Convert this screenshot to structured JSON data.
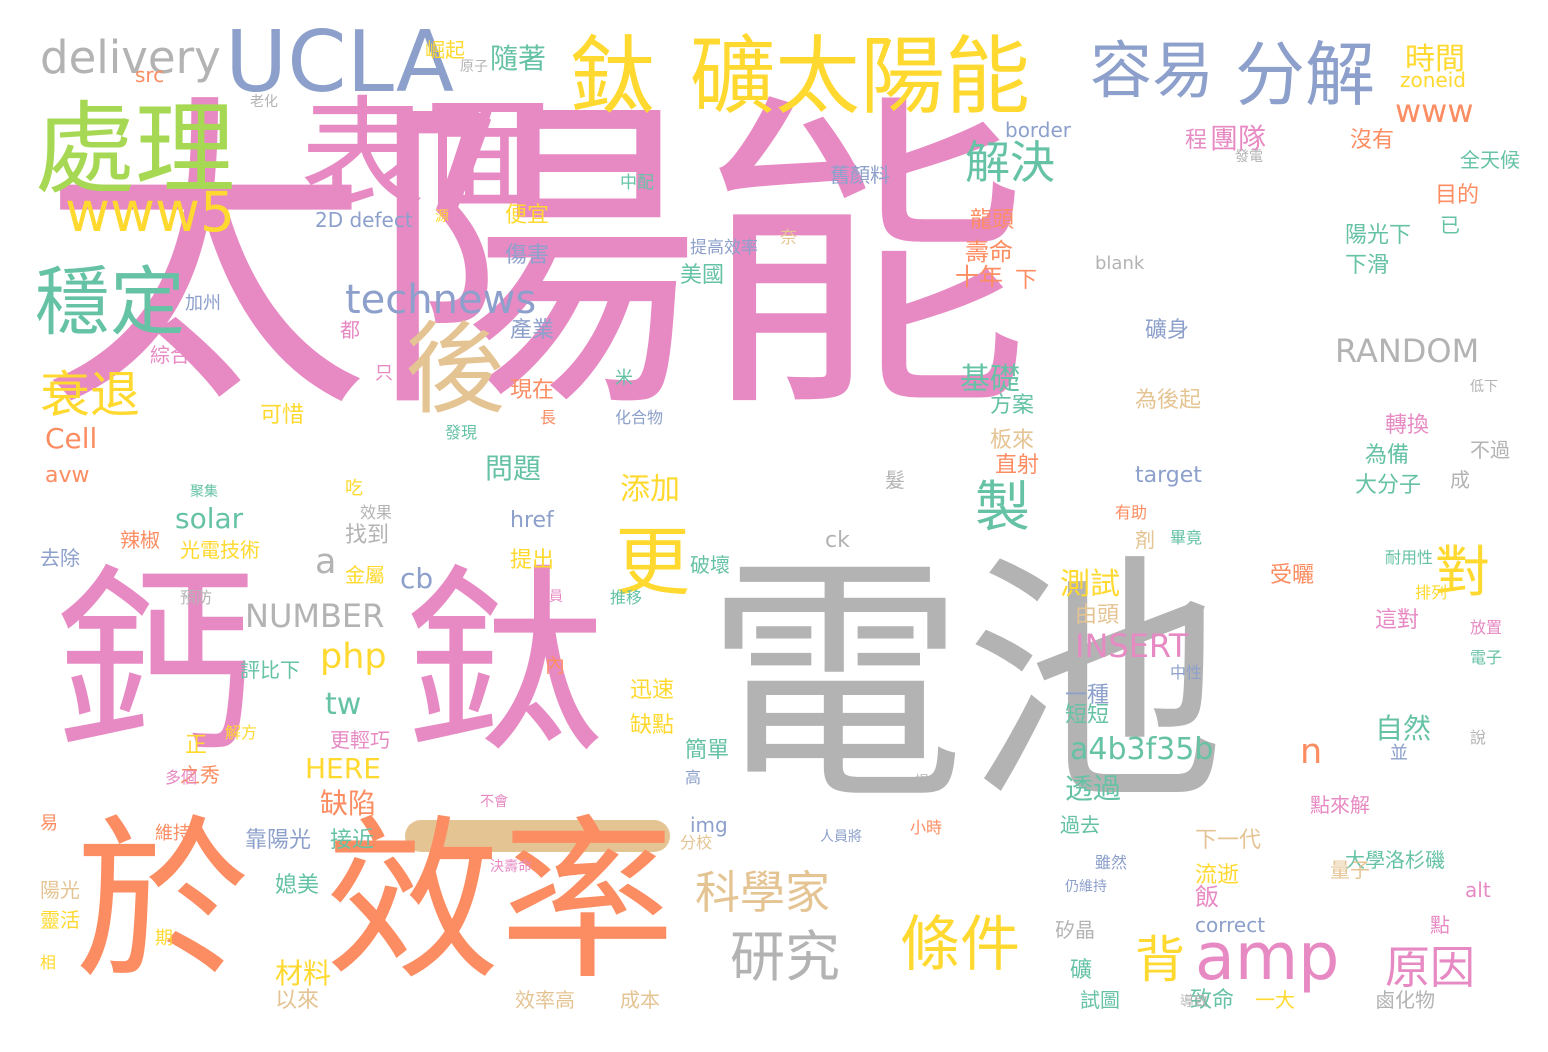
{
  "palette": {
    "pink": "#e78ac3",
    "gray": "#b3b3b3",
    "orange": "#fc8d62",
    "yellow": "#ffd92f",
    "green": "#a6d854",
    "teal": "#66c2a5",
    "blue": "#8da0cb",
    "tan": "#e5c494"
  },
  "dash_color": "#e5c494",
  "words": [
    {
      "text": "太陽能",
      "color": "pink"
    },
    {
      "text": "電池",
      "color": "gray"
    },
    {
      "text": "鈣",
      "color": "pink"
    },
    {
      "text": "鈦",
      "color": "pink"
    },
    {
      "text": "於",
      "color": "orange"
    },
    {
      "text": "效率",
      "color": "orange"
    },
    {
      "text": "表面",
      "color": "pink"
    },
    {
      "text": "處理",
      "color": "green"
    },
    {
      "text": "UCLA",
      "color": "blue"
    },
    {
      "text": "鈦",
      "color": "yellow"
    },
    {
      "text": "礦太陽能",
      "color": "yellow"
    },
    {
      "text": "容易",
      "color": "blue"
    },
    {
      "text": "分解",
      "color": "blue"
    },
    {
      "text": "後",
      "color": "tan"
    },
    {
      "text": "穩定",
      "color": "teal"
    },
    {
      "text": "www5",
      "color": "yellow"
    },
    {
      "text": "delivery",
      "color": "gray"
    },
    {
      "text": "technews",
      "color": "blue"
    },
    {
      "text": "衰退",
      "color": "yellow"
    },
    {
      "text": "更",
      "color": "yellow"
    },
    {
      "text": "製",
      "color": "teal"
    },
    {
      "text": "解決",
      "color": "teal"
    },
    {
      "text": "對",
      "color": "yellow"
    },
    {
      "text": "amp",
      "color": "pink"
    },
    {
      "text": "原因",
      "color": "pink"
    },
    {
      "text": "條件",
      "color": "yellow"
    },
    {
      "text": "研究",
      "color": "gray"
    },
    {
      "text": "科學家",
      "color": "tan"
    },
    {
      "text": "www",
      "color": "orange"
    },
    {
      "text": "RANDOM",
      "color": "gray"
    },
    {
      "text": "INSERT",
      "color": "pink"
    },
    {
      "text": "NUMBER",
      "color": "gray"
    },
    {
      "text": "a4b3f35b",
      "color": "teal"
    },
    {
      "text": "php",
      "color": "yellow"
    },
    {
      "text": "a",
      "color": "gray"
    },
    {
      "text": "n",
      "color": "orange"
    },
    {
      "text": "背",
      "color": "yellow"
    },
    {
      "text": "時間",
      "color": "yellow"
    },
    {
      "text": "隨著",
      "color": "teal"
    },
    {
      "text": "團隊",
      "color": "pink"
    },
    {
      "text": "基礎",
      "color": "teal"
    },
    {
      "text": "測試",
      "color": "yellow"
    },
    {
      "text": "添加",
      "color": "yellow"
    },
    {
      "text": "問題",
      "color": "teal"
    },
    {
      "text": "solar",
      "color": "teal"
    },
    {
      "text": "tw",
      "color": "teal"
    },
    {
      "text": "缺陷",
      "color": "orange"
    },
    {
      "text": "HERE",
      "color": "yellow"
    },
    {
      "text": "透過",
      "color": "teal"
    },
    {
      "text": "Cell",
      "color": "orange"
    },
    {
      "text": "cb",
      "color": "blue"
    },
    {
      "text": "材料",
      "color": "yellow"
    },
    {
      "text": "自然",
      "color": "teal"
    },
    {
      "text": "十年",
      "color": "orange"
    },
    {
      "text": "壽命",
      "color": "orange"
    },
    {
      "text": "舊顏料",
      "color": "blue"
    },
    {
      "text": "border",
      "color": "blue"
    },
    {
      "text": "zoneid",
      "color": "yellow"
    },
    {
      "text": "沒有",
      "color": "orange"
    },
    {
      "text": "目的",
      "color": "orange"
    },
    {
      "text": "陽光下",
      "color": "teal"
    },
    {
      "text": "下滑",
      "color": "teal"
    },
    {
      "text": "礦身",
      "color": "blue"
    },
    {
      "text": "為後起",
      "color": "tan"
    },
    {
      "text": "轉換",
      "color": "pink"
    },
    {
      "text": "為備",
      "color": "teal"
    },
    {
      "text": "大分子",
      "color": "teal"
    },
    {
      "text": "target",
      "color": "blue"
    },
    {
      "text": "href",
      "color": "blue"
    },
    {
      "text": "ck",
      "color": "gray"
    },
    {
      "text": "找到",
      "color": "gray"
    },
    {
      "text": "光電技術",
      "color": "yellow"
    },
    {
      "text": "辣椒",
      "color": "orange"
    },
    {
      "text": "去除",
      "color": "blue"
    },
    {
      "text": "加州",
      "color": "blue"
    },
    {
      "text": "綜合",
      "color": "pink"
    },
    {
      "text": "產業",
      "color": "blue"
    },
    {
      "text": "都",
      "color": "pink"
    },
    {
      "text": "現在",
      "color": "orange"
    },
    {
      "text": "可惜",
      "color": "yellow"
    },
    {
      "text": "avw",
      "color": "orange"
    },
    {
      "text": "便宜",
      "color": "yellow"
    },
    {
      "text": "傷害",
      "color": "blue"
    },
    {
      "text": "美國",
      "color": "teal"
    },
    {
      "text": "2D defect",
      "color": "blue"
    },
    {
      "text": "src",
      "color": "orange"
    },
    {
      "text": "崛起",
      "color": "yellow"
    },
    {
      "text": "程",
      "color": "pink"
    },
    {
      "text": "龍頭",
      "color": "orange"
    },
    {
      "text": "方案",
      "color": "teal"
    },
    {
      "text": "板來",
      "color": "tan"
    },
    {
      "text": "直射",
      "color": "orange"
    },
    {
      "text": "正",
      "color": "yellow"
    },
    {
      "text": "下",
      "color": "orange"
    },
    {
      "text": "提出",
      "color": "yellow"
    },
    {
      "text": "金屬",
      "color": "yellow"
    },
    {
      "text": "迅速",
      "color": "yellow"
    },
    {
      "text": "缺點",
      "color": "yellow"
    },
    {
      "text": "簡單",
      "color": "teal"
    },
    {
      "text": "靠陽光",
      "color": "blue"
    },
    {
      "text": "接近",
      "color": "teal"
    },
    {
      "text": "媳美",
      "color": "teal"
    },
    {
      "text": "以來",
      "color": "tan"
    },
    {
      "text": "靈活",
      "color": "yellow"
    },
    {
      "text": "陽光",
      "color": "tan"
    },
    {
      "text": "之秀",
      "color": "orange"
    },
    {
      "text": "更輕巧",
      "color": "pink"
    },
    {
      "text": "評比下",
      "color": "teal"
    },
    {
      "text": "矽晶",
      "color": "gray"
    },
    {
      "text": "一種",
      "color": "blue"
    },
    {
      "text": "短短",
      "color": "teal"
    },
    {
      "text": "過去",
      "color": "teal"
    },
    {
      "text": "下一代",
      "color": "tan"
    },
    {
      "text": "流逝",
      "color": "yellow"
    },
    {
      "text": "飯",
      "color": "pink"
    },
    {
      "text": "礦",
      "color": "teal"
    },
    {
      "text": "試圖",
      "color": "teal"
    },
    {
      "text": "致命",
      "color": "teal"
    },
    {
      "text": "一大",
      "color": "yellow"
    },
    {
      "text": "成本",
      "color": "tan"
    },
    {
      "text": "效率高",
      "color": "tan"
    },
    {
      "text": "鹵化物",
      "color": "gray"
    },
    {
      "text": "大學洛杉磯",
      "color": "teal"
    },
    {
      "text": "受曬",
      "color": "orange"
    },
    {
      "text": "這對",
      "color": "pink"
    },
    {
      "text": "由頭",
      "color": "tan"
    },
    {
      "text": "blank",
      "color": "gray"
    },
    {
      "text": "correct",
      "color": "blue"
    },
    {
      "text": "img",
      "color": "blue"
    },
    {
      "text": "alt",
      "color": "pink"
    },
    {
      "text": "點",
      "color": "pink"
    },
    {
      "text": "點來解",
      "color": "pink"
    },
    {
      "text": "量子",
      "color": "tan"
    },
    {
      "text": "奈",
      "color": "tan"
    },
    {
      "text": "提高效率",
      "color": "blue"
    },
    {
      "text": "中配",
      "color": "teal"
    },
    {
      "text": "發電",
      "color": "gray"
    },
    {
      "text": "老化",
      "color": "gray"
    },
    {
      "text": "原子",
      "color": "gray"
    },
    {
      "text": "源",
      "color": "yellow"
    },
    {
      "text": "全天候",
      "color": "teal"
    },
    {
      "text": "已",
      "color": "teal"
    },
    {
      "text": "不過",
      "color": "gray"
    },
    {
      "text": "成",
      "color": "gray"
    },
    {
      "text": "剤",
      "color": "tan"
    },
    {
      "text": "髮",
      "color": "gray"
    },
    {
      "text": "吃",
      "color": "yellow"
    },
    {
      "text": "只",
      "color": "pink"
    },
    {
      "text": "長",
      "color": "orange"
    },
    {
      "text": "米",
      "color": "teal"
    },
    {
      "text": "發現",
      "color": "teal"
    },
    {
      "text": "化合物",
      "color": "blue"
    },
    {
      "text": "破壞",
      "color": "teal"
    },
    {
      "text": "內",
      "color": "orange"
    },
    {
      "text": "並",
      "color": "blue"
    },
    {
      "text": "說",
      "color": "gray"
    },
    {
      "text": "電子",
      "color": "teal"
    },
    {
      "text": "放置",
      "color": "pink"
    },
    {
      "text": "中性",
      "color": "blue"
    },
    {
      "text": "耐用性",
      "color": "teal"
    },
    {
      "text": "排列",
      "color": "yellow"
    },
    {
      "text": "低下",
      "color": "gray"
    },
    {
      "text": "有助",
      "color": "orange"
    },
    {
      "text": "畢竟",
      "color": "teal"
    },
    {
      "text": "維持",
      "color": "orange"
    },
    {
      "text": "易",
      "color": "orange"
    },
    {
      "text": "期",
      "color": "yellow"
    },
    {
      "text": "相",
      "color": "yellow"
    },
    {
      "text": "多個",
      "color": "pink"
    },
    {
      "text": "解方",
      "color": "yellow"
    },
    {
      "text": "效果",
      "color": "gray"
    },
    {
      "text": "預防",
      "color": "gray"
    },
    {
      "text": "人員",
      "color": "pink"
    },
    {
      "text": "推移",
      "color": "teal"
    },
    {
      "text": "決壽命",
      "color": "pink"
    },
    {
      "text": "雖然",
      "color": "blue"
    },
    {
      "text": "分校",
      "color": "tan"
    },
    {
      "text": "不會",
      "color": "pink"
    },
    {
      "text": "高",
      "color": "blue"
    },
    {
      "text": "提高",
      "color": "gray"
    },
    {
      "text": "小時",
      "color": "orange"
    },
    {
      "text": "人員將",
      "color": "blue"
    },
    {
      "text": "聚集",
      "color": "teal"
    },
    {
      "text": "仍維持",
      "color": "blue"
    },
    {
      "text": "導致",
      "color": "gray"
    },
    {
      "text": "加速",
      "color": "gray"
    }
  ]
}
